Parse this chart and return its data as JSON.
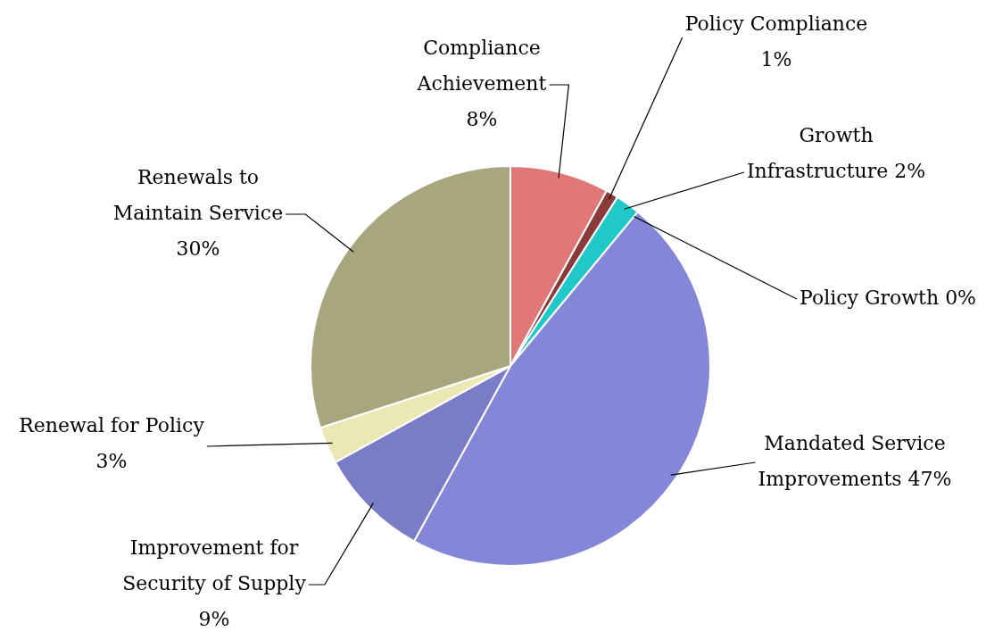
{
  "chart_data": {
    "type": "pie",
    "categories": [
      "Compliance Achievement",
      "Policy Compliance",
      "Growth Infrastructure",
      "Policy Growth",
      "Mandated Service Improvements",
      "Improvement for Security of Supply",
      "Renewal for Policy",
      "Renewals to Maintain Service"
    ],
    "values": [
      8,
      1,
      2,
      0,
      47,
      9,
      3,
      30
    ],
    "value_labels": [
      "8%",
      "1%",
      "2%",
      "0%",
      "47%",
      "9%",
      "3%",
      "30%"
    ],
    "colors": [
      "#e07878",
      "#8b3a3a",
      "#20c8c8",
      "#303070",
      "#8486d8",
      "#7a7cc8",
      "#ece8b4",
      "#a8a67e"
    ]
  }
}
